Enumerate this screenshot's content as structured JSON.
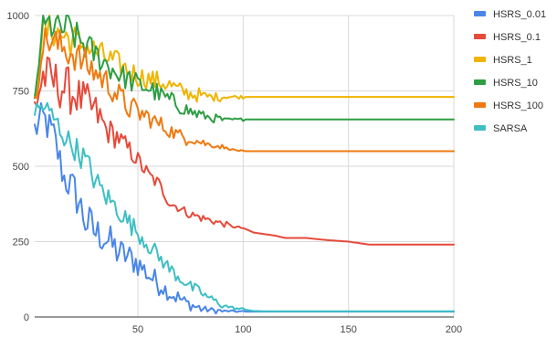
{
  "chart_data": {
    "type": "line",
    "title": "",
    "xlabel": "",
    "ylabel": "",
    "xlim": [
      1,
      200
    ],
    "ylim": [
      0,
      1000
    ],
    "x_ticks": [
      50,
      100,
      150,
      200
    ],
    "y_ticks": [
      0,
      250,
      500,
      750,
      1000
    ],
    "grid": true,
    "legend_position": "right",
    "episodes": 200,
    "series": [
      {
        "name": "HSRS_0.01",
        "color": "#4a86e8",
        "anchors": [
          [
            1,
            620
          ],
          [
            5,
            660
          ],
          [
            10,
            600
          ],
          [
            15,
            460
          ],
          [
            20,
            420
          ],
          [
            25,
            320
          ],
          [
            30,
            280
          ],
          [
            35,
            260
          ],
          [
            40,
            220
          ],
          [
            45,
            200
          ],
          [
            50,
            180
          ],
          [
            55,
            140
          ],
          [
            60,
            110
          ],
          [
            65,
            80
          ],
          [
            70,
            60
          ],
          [
            75,
            40
          ],
          [
            80,
            28
          ],
          [
            85,
            22
          ],
          [
            90,
            20
          ],
          [
            95,
            19
          ],
          [
            100,
            18
          ],
          [
            110,
            18
          ],
          [
            200,
            18
          ]
        ],
        "noise": [
          60,
          60,
          70,
          60,
          50,
          40,
          30,
          20,
          10,
          3,
          0
        ]
      },
      {
        "name": "HSRS_0.1",
        "color": "#e64a3b",
        "anchors": [
          [
            1,
            700
          ],
          [
            5,
            800
          ],
          [
            10,
            780
          ],
          [
            15,
            760
          ],
          [
            20,
            740
          ],
          [
            25,
            710
          ],
          [
            30,
            680
          ],
          [
            35,
            620
          ],
          [
            40,
            600
          ],
          [
            45,
            560
          ],
          [
            50,
            520
          ],
          [
            55,
            470
          ],
          [
            60,
            440
          ],
          [
            65,
            380
          ],
          [
            70,
            360
          ],
          [
            75,
            340
          ],
          [
            80,
            330
          ],
          [
            85,
            320
          ],
          [
            90,
            310
          ],
          [
            95,
            300
          ],
          [
            100,
            295
          ],
          [
            105,
            280
          ],
          [
            110,
            275
          ],
          [
            115,
            270
          ],
          [
            120,
            262
          ],
          [
            130,
            262
          ],
          [
            140,
            255
          ],
          [
            150,
            250
          ],
          [
            155,
            245
          ],
          [
            160,
            240
          ],
          [
            200,
            240
          ]
        ],
        "noise": [
          80,
          80,
          80,
          70,
          60,
          45,
          35,
          30,
          25,
          20,
          15,
          15,
          12,
          10,
          4,
          0
        ]
      },
      {
        "name": "HSRS_1",
        "color": "#f1b400",
        "anchors": [
          [
            1,
            700
          ],
          [
            4,
            920
          ],
          [
            8,
            960
          ],
          [
            12,
            940
          ],
          [
            18,
            920
          ],
          [
            25,
            900
          ],
          [
            30,
            880
          ],
          [
            35,
            860
          ],
          [
            40,
            840
          ],
          [
            45,
            820
          ],
          [
            50,
            800
          ],
          [
            55,
            790
          ],
          [
            60,
            780
          ],
          [
            65,
            770
          ],
          [
            70,
            750
          ],
          [
            75,
            740
          ],
          [
            80,
            735
          ],
          [
            85,
            730
          ],
          [
            90,
            730
          ],
          [
            200,
            730
          ]
        ],
        "noise": [
          60,
          60,
          50,
          45,
          40,
          35,
          30,
          25,
          15,
          6,
          0
        ]
      },
      {
        "name": "HSRS_10",
        "color": "#2e9e44",
        "anchors": [
          [
            1,
            680
          ],
          [
            4,
            940
          ],
          [
            8,
            970
          ],
          [
            12,
            960
          ],
          [
            18,
            950
          ],
          [
            25,
            900
          ],
          [
            30,
            870
          ],
          [
            35,
            840
          ],
          [
            40,
            810
          ],
          [
            45,
            790
          ],
          [
            50,
            770
          ],
          [
            55,
            760
          ],
          [
            60,
            740
          ],
          [
            65,
            720
          ],
          [
            70,
            700
          ],
          [
            75,
            680
          ],
          [
            80,
            670
          ],
          [
            85,
            660
          ],
          [
            90,
            655
          ],
          [
            95,
            655
          ],
          [
            200,
            655
          ]
        ],
        "noise": [
          60,
          60,
          50,
          45,
          40,
          35,
          30,
          25,
          15,
          5,
          0
        ]
      },
      {
        "name": "HSRS_100",
        "color": "#f07a10",
        "anchors": [
          [
            1,
            680
          ],
          [
            4,
            900
          ],
          [
            8,
            920
          ],
          [
            12,
            900
          ],
          [
            18,
            880
          ],
          [
            25,
            840
          ],
          [
            30,
            810
          ],
          [
            35,
            780
          ],
          [
            40,
            740
          ],
          [
            45,
            700
          ],
          [
            50,
            680
          ],
          [
            55,
            660
          ],
          [
            60,
            640
          ],
          [
            65,
            620
          ],
          [
            70,
            600
          ],
          [
            75,
            590
          ],
          [
            80,
            580
          ],
          [
            85,
            570
          ],
          [
            90,
            565
          ],
          [
            95,
            555
          ],
          [
            100,
            550
          ],
          [
            200,
            550
          ]
        ],
        "noise": [
          60,
          60,
          55,
          50,
          45,
          40,
          30,
          25,
          15,
          8,
          3,
          0
        ]
      },
      {
        "name": "SARSA",
        "color": "#3fbfc4",
        "anchors": [
          [
            1,
            680
          ],
          [
            5,
            700
          ],
          [
            10,
            660
          ],
          [
            15,
            600
          ],
          [
            20,
            560
          ],
          [
            25,
            520
          ],
          [
            30,
            450
          ],
          [
            35,
            400
          ],
          [
            40,
            360
          ],
          [
            45,
            320
          ],
          [
            50,
            280
          ],
          [
            55,
            240
          ],
          [
            60,
            200
          ],
          [
            65,
            160
          ],
          [
            70,
            130
          ],
          [
            75,
            100
          ],
          [
            80,
            80
          ],
          [
            85,
            60
          ],
          [
            90,
            40
          ],
          [
            95,
            30
          ],
          [
            100,
            25
          ],
          [
            105,
            20
          ],
          [
            110,
            19
          ],
          [
            200,
            19
          ]
        ],
        "noise": [
          40,
          40,
          45,
          40,
          35,
          30,
          25,
          20,
          12,
          5,
          0
        ]
      }
    ]
  }
}
